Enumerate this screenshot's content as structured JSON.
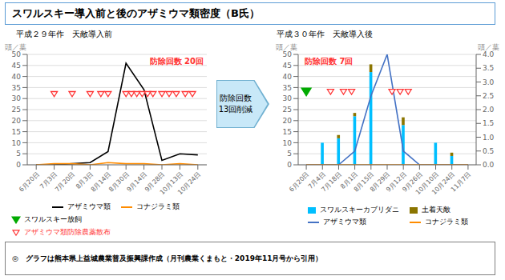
{
  "title": "スワルスキー導入前と後のアザミウマ類密度（B氏）",
  "footer": "◎　グラフは熊本県上益城農業普及振興課作成（月刊農業くまもと・2019年11月号から引用）",
  "annotation": "防除回数\n13回削減",
  "chart_data": [
    {
      "type": "line",
      "subtitle": "平成２９年作　天敵導入前",
      "annotation": "防除回数 20回",
      "ylabel": "頭／葉",
      "categories": [
        "6月20日",
        "7月3日",
        "7月20日",
        "8月3日",
        "8月14日",
        "8月30日",
        "9月14日",
        "9月28日",
        "10月13日",
        "10月24日"
      ],
      "ylim": [
        0,
        50
      ],
      "yticks": [
        0,
        5,
        10,
        15,
        20,
        25,
        30,
        35,
        40,
        45,
        50
      ],
      "grid": true,
      "series": [
        {
          "name": "アザミウマ類",
          "color": "#000000",
          "values": [
            0,
            0,
            0.5,
            1,
            6,
            46,
            34,
            2,
            5,
            4.5
          ]
        },
        {
          "name": "コナジラミ類",
          "color": "#FF8C00",
          "values": [
            0,
            0.5,
            0.5,
            0,
            1,
            0.5,
            0.5,
            0,
            0.5,
            0
          ]
        },
        {
          "name": "アザミウマ類防除農薬散布",
          "type": "scatter",
          "marker": "open_triangle_down",
          "color": "#FF3333",
          "x": [
            1,
            2,
            3,
            3.6,
            4.0,
            5.0,
            5.3,
            5.6,
            5.9,
            6.2,
            6.5,
            7.0,
            7.4,
            7.8,
            8.3,
            8.7
          ],
          "values": [
            32,
            32,
            32,
            32,
            32,
            32,
            32,
            32,
            32,
            32,
            32,
            32,
            32,
            32,
            32,
            32
          ]
        }
      ]
    },
    {
      "type": "bar",
      "stacked": true,
      "subtitle": "平成３０年作　天敵導入後",
      "annotation": "防除回数 7回",
      "ylabel": "頭／葉",
      "y2label": "頭／葉",
      "categories": [
        "6月20日",
        "7月4日",
        "7月18日",
        "8月1日",
        "8月15日",
        "8月29日",
        "9月12日",
        "9月26日",
        "10月10日",
        "10月24日",
        "11月7日"
      ],
      "ylim": [
        0,
        50
      ],
      "yticks": [
        0,
        5,
        10,
        15,
        20,
        25,
        30,
        35,
        40,
        45,
        50
      ],
      "y2lim": [
        0,
        4.0
      ],
      "y2ticks": [
        {
          "value": 0,
          "label": "0.0"
        },
        0.5,
        {
          "value": 1,
          "label": "1.0"
        },
        1.5,
        {
          "value": 2,
          "label": "2.0"
        },
        2.5,
        {
          "value": 3,
          "label": "3.0"
        },
        3.5,
        {
          "value": 4,
          "label": "4.0"
        }
      ],
      "grid": true,
      "series": [
        {
          "name": "スワルスキーカブリダニ",
          "type": "bar",
          "color": "#00BFFF",
          "values": [
            0,
            10,
            12,
            22,
            42,
            0,
            18,
            0,
            10,
            4,
            0
          ]
        },
        {
          "name": "土着天敵",
          "type": "bar",
          "color": "#8B7500",
          "values": [
            0,
            0,
            1.5,
            1.5,
            3.5,
            0,
            3.5,
            0,
            0,
            1.5,
            0
          ]
        },
        {
          "name": "アザミウマ類",
          "type": "line",
          "axis": "y2",
          "color": "#4472C4",
          "values": [
            0,
            0,
            0,
            0.5,
            2.5,
            4.0,
            0.5,
            0,
            0,
            0,
            0
          ]
        },
        {
          "name": "コナジラミ類",
          "type": "line",
          "axis": "y2",
          "color": "#FF8C00",
          "values": [
            0,
            0,
            0,
            0,
            0,
            0,
            0,
            0,
            0,
            0,
            0
          ]
        },
        {
          "name": "スワルスキー放飼",
          "type": "scatter",
          "marker": "filled_triangle_down",
          "color": "#00AA00",
          "x": [
            0
          ],
          "values": [
            33
          ]
        },
        {
          "name": "アザミウマ類防除農薬散布",
          "type": "scatter",
          "marker": "open_triangle_down",
          "color": "#FF3333",
          "x": [
            1.5,
            2.3,
            2.8,
            5.3,
            5.8,
            6.3
          ],
          "values": [
            33,
            33,
            33,
            33,
            33,
            33
          ]
        }
      ]
    }
  ]
}
